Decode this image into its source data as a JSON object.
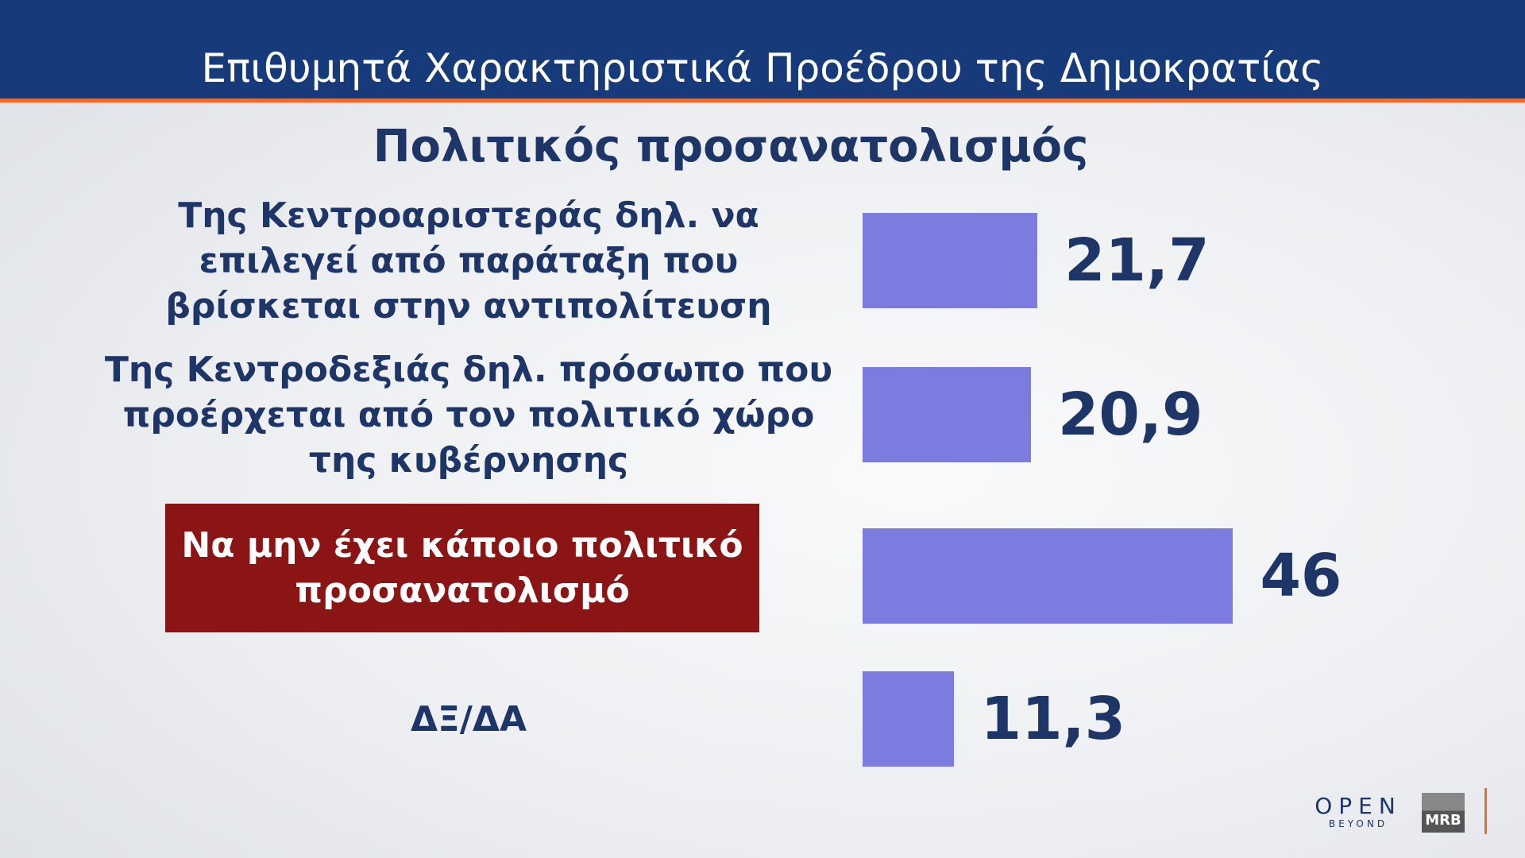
{
  "chart_data": {
    "type": "bar",
    "title": "Επιθυμητά Χαρακτηριστικά Προέδρου της Δημοκρατίας",
    "subtitle": "Πολιτικός προσανατολισμός",
    "categories": [
      "Της Κεντροαριστεράς δηλ. να επιλεγεί από παράταξη που βρίσκεται στην αντιπολίτευση",
      "Της Κεντροδεξιάς δηλ. πρόσωπο που προέρχεται από τον πολιτικό χώρο της κυβέρνησης",
      "Να μην έχει κάποιο πολιτικό προσανατολισμό",
      "ΔΞ/ΔΑ"
    ],
    "values": [
      21.7,
      20.9,
      46,
      11.3
    ],
    "value_labels": [
      "21,7",
      "20,9",
      "46",
      "11,3"
    ],
    "color": "#7b7be0",
    "highlight": {
      "category": 2,
      "color": "#8b1515"
    }
  },
  "branding": {
    "channel": "OPEN",
    "tagline": "BEYOND",
    "pollster": "MRB"
  }
}
